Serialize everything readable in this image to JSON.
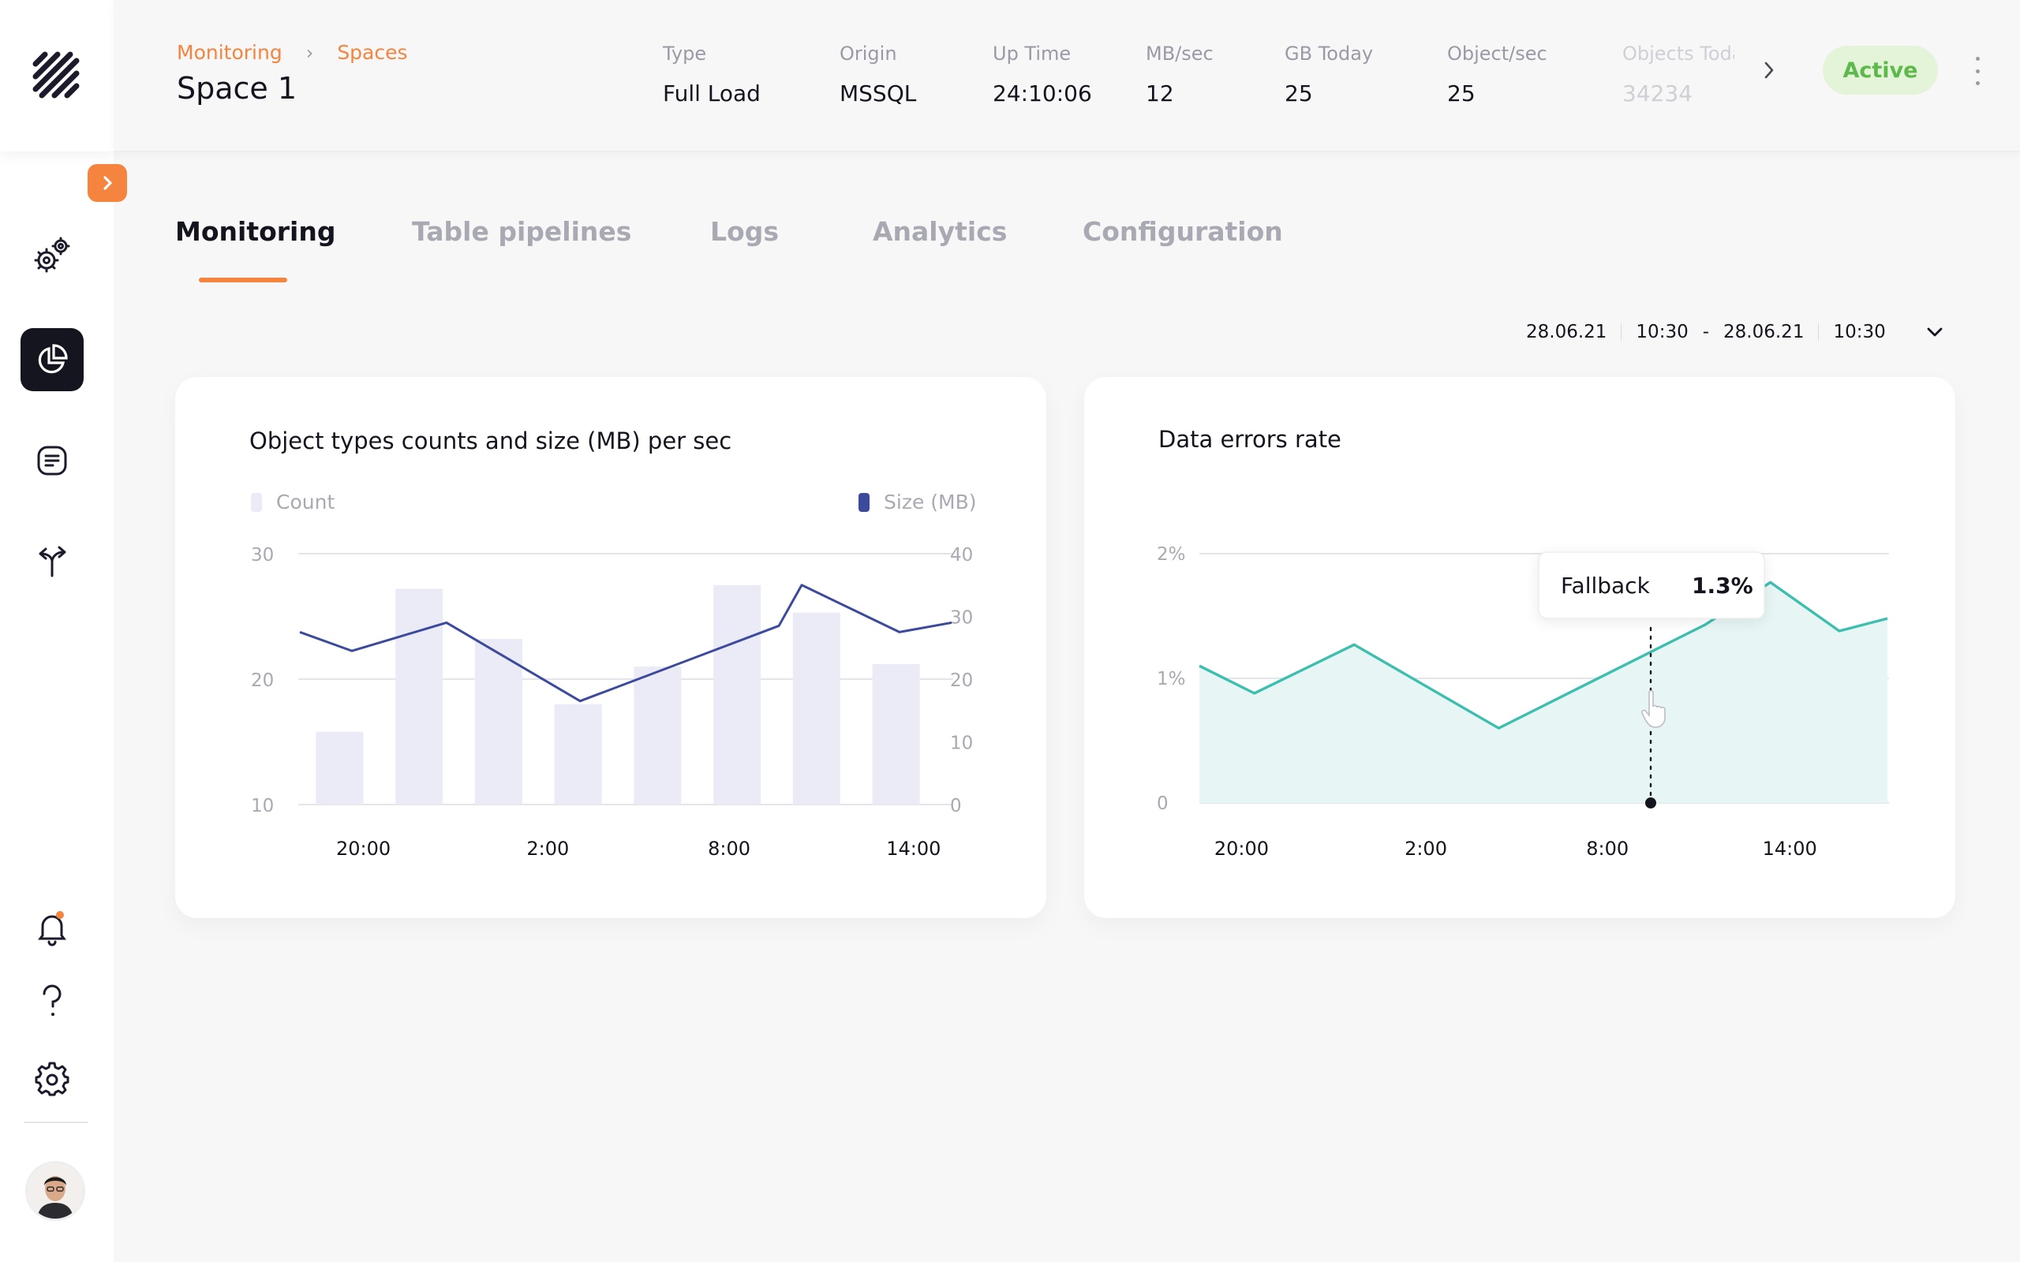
{
  "header": {
    "breadcrumb": [
      "Monitoring",
      "Spaces"
    ],
    "title": "Space 1",
    "metrics": [
      {
        "label": "Type",
        "value": "Full Load"
      },
      {
        "label": "Origin",
        "value": "MSSQL"
      },
      {
        "label": "Up Time",
        "value": "24:10:06"
      },
      {
        "label": "MB/sec",
        "value": "12"
      },
      {
        "label": "GB Today",
        "value": "25"
      },
      {
        "label": "Object/sec",
        "value": "25"
      },
      {
        "label": "Objects Today",
        "value": "34234"
      }
    ],
    "status": "Active",
    "colors": {
      "accent": "#f5843e",
      "status_bg": "#e4f4d9",
      "status_text": "#5db94a"
    }
  },
  "sidebar": {
    "items": [
      "settings-icon",
      "analytics-icon",
      "logs-icon",
      "pipelines-icon"
    ],
    "bottom": [
      "notification-bell-icon",
      "help-icon",
      "gear-icon"
    ]
  },
  "tabs": [
    "Monitoring",
    "Table pipelines",
    "Logs",
    "Analytics",
    "Configuration"
  ],
  "active_tab": "Monitoring",
  "daterange": {
    "from_date": "28.06.21",
    "from_time": "10:30",
    "separator": "-",
    "to_date": "28.06.21",
    "to_time": "10:30"
  },
  "chart_data": [
    {
      "type": "bar",
      "title": "Object types counts and size (MB) per sec",
      "x_ticks": [
        "20:00",
        "2:00",
        "8:00",
        "14:00"
      ],
      "left_axis_ticks": [
        "30",
        "20",
        "10"
      ],
      "right_axis_ticks": [
        "40",
        "30",
        "20",
        "10",
        "0"
      ],
      "ylim_left": [
        10,
        30
      ],
      "ylim_right": [
        0,
        40
      ],
      "series": [
        {
          "name": "Count",
          "type": "bar",
          "color": "#ebebf7",
          "values": [
            15.8,
            27.2,
            23.2,
            18.0,
            21.0,
            27.5,
            25.3,
            21.2
          ]
        },
        {
          "name": "Size (MB)",
          "type": "line",
          "color": "#3b4a9d",
          "points": [
            [
              0,
              27.5
            ],
            [
              0.08,
              24.5
            ],
            [
              0.225,
              29.0
            ],
            [
              0.43,
              16.5
            ],
            [
              0.735,
              28.5
            ],
            [
              0.77,
              35.0
            ],
            [
              0.92,
              27.5
            ],
            [
              1.0,
              29.0
            ]
          ]
        }
      ],
      "legend": "top",
      "grid": true
    },
    {
      "type": "area",
      "title": "Data errors rate",
      "x_ticks": [
        "20:00",
        "2:00",
        "8:00",
        "14:00"
      ],
      "y_ticks": [
        "2%",
        "1%",
        "0"
      ],
      "ylim": [
        0,
        2
      ],
      "series": [
        {
          "name": "Fallback",
          "color": "#3dbfb0",
          "points": [
            [
              0,
              1.1
            ],
            [
              0.08,
              0.88
            ],
            [
              0.225,
              1.27
            ],
            [
              0.435,
              0.6
            ],
            [
              0.735,
              1.43
            ],
            [
              0.83,
              1.77
            ],
            [
              0.93,
              1.38
            ],
            [
              1.0,
              1.48
            ]
          ]
        }
      ],
      "tooltip": {
        "label": "Fallback",
        "value": "1.3%"
      },
      "grid": true
    }
  ]
}
